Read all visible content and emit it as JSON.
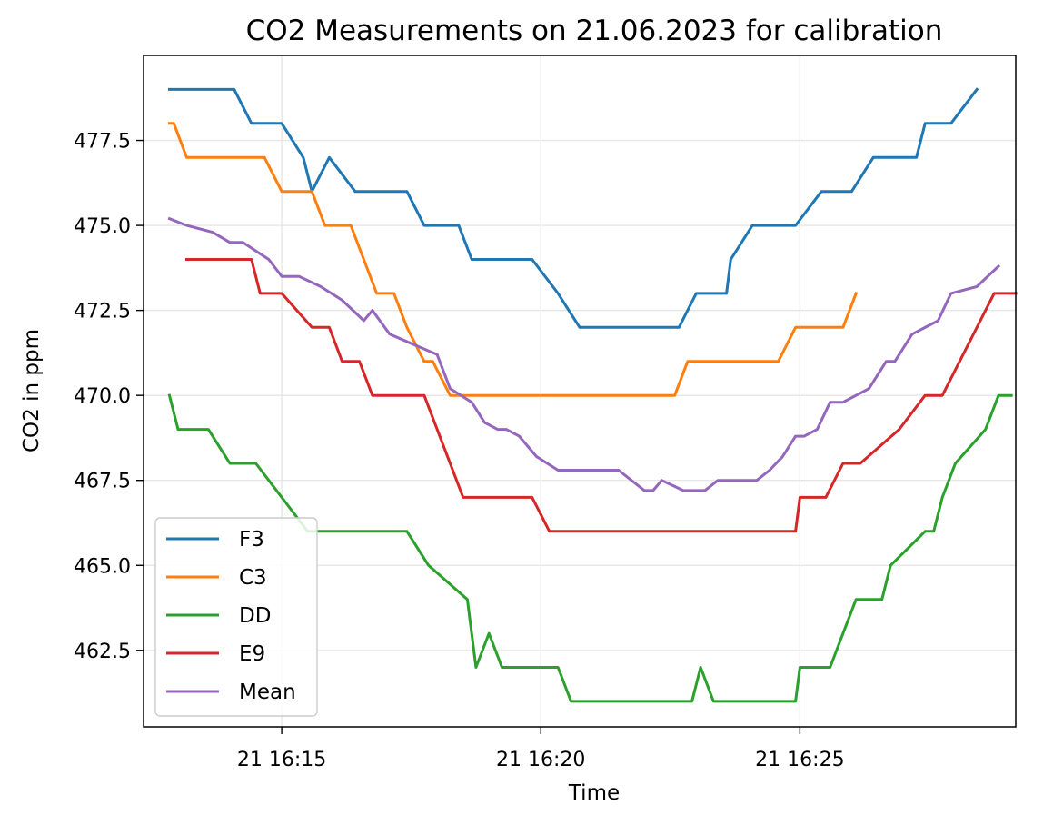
{
  "chart_data": {
    "type": "line",
    "title": "CO2 Measurements on 21.06.2023 for calibration",
    "xlabel": "Time",
    "ylabel": "CO2 in ppm",
    "x_unit": "time of day, 21.06.2023",
    "xlim": [
      "16:12:20",
      "16:29:10"
    ],
    "ylim": [
      460.25,
      480.0
    ],
    "grid": true,
    "legend_position": "lower left",
    "x_ticks": [
      {
        "value": "16:15",
        "label": "21 16:15"
      },
      {
        "value": "16:20",
        "label": "21 16:20"
      },
      {
        "value": "16:25",
        "label": "21 16:25"
      }
    ],
    "y_ticks": [
      {
        "value": 462.5,
        "label": "462.5"
      },
      {
        "value": 465.0,
        "label": "465.0"
      },
      {
        "value": 467.5,
        "label": "467.5"
      },
      {
        "value": 470.0,
        "label": "470.0"
      },
      {
        "value": 472.5,
        "label": "472.5"
      },
      {
        "value": 475.0,
        "label": "475.0"
      },
      {
        "value": 477.5,
        "label": "477.5"
      }
    ],
    "series": [
      {
        "name": "F3",
        "color": "#1f77b4",
        "points": [
          [
            "16:12:50",
            479
          ],
          [
            "16:14:05",
            479
          ],
          [
            "16:14:25",
            478
          ],
          [
            "16:15:00",
            478
          ],
          [
            "16:15:25",
            477
          ],
          [
            "16:15:35",
            476
          ],
          [
            "16:15:55",
            477
          ],
          [
            "16:16:25",
            476
          ],
          [
            "16:17:25",
            476
          ],
          [
            "16:17:45",
            475
          ],
          [
            "16:18:25",
            475
          ],
          [
            "16:18:40",
            474
          ],
          [
            "16:19:50",
            474
          ],
          [
            "16:20:20",
            473
          ],
          [
            "16:20:45",
            472
          ],
          [
            "16:22:40",
            472
          ],
          [
            "16:23:00",
            473
          ],
          [
            "16:23:35",
            473
          ],
          [
            "16:23:40",
            474
          ],
          [
            "16:24:05",
            475
          ],
          [
            "16:24:55",
            475
          ],
          [
            "16:25:25",
            476
          ],
          [
            "16:26:00",
            476
          ],
          [
            "16:26:25",
            477
          ],
          [
            "16:27:15",
            477
          ],
          [
            "16:27:25",
            478
          ],
          [
            "16:27:55",
            478
          ],
          [
            "16:28:25",
            479
          ]
        ]
      },
      {
        "name": "C3",
        "color": "#ff7f0e",
        "points": [
          [
            "16:12:50",
            478
          ],
          [
            "16:12:55",
            478
          ],
          [
            "16:13:10",
            477
          ],
          [
            "16:14:40",
            477
          ],
          [
            "16:15:00",
            476
          ],
          [
            "16:15:35",
            476
          ],
          [
            "16:15:50",
            475
          ],
          [
            "16:16:20",
            475
          ],
          [
            "16:16:50",
            473
          ],
          [
            "16:17:10",
            473
          ],
          [
            "16:17:25",
            472
          ],
          [
            "16:17:45",
            471
          ],
          [
            "16:17:55",
            471
          ],
          [
            "16:18:15",
            470
          ],
          [
            "16:22:35",
            470
          ],
          [
            "16:22:50",
            471
          ],
          [
            "16:24:35",
            471
          ],
          [
            "16:24:55",
            472
          ],
          [
            "16:25:50",
            472
          ],
          [
            "16:26:05",
            473
          ]
        ]
      },
      {
        "name": "DD",
        "color": "#2ca02c",
        "points": [
          [
            "16:12:50",
            470
          ],
          [
            "16:13:00",
            469
          ],
          [
            "16:13:35",
            469
          ],
          [
            "16:14:00",
            468
          ],
          [
            "16:14:30",
            468
          ],
          [
            "16:15:30",
            466
          ],
          [
            "16:17:25",
            466
          ],
          [
            "16:17:50",
            465
          ],
          [
            "16:18:35",
            464
          ],
          [
            "16:18:45",
            462
          ],
          [
            "16:19:00",
            463
          ],
          [
            "16:19:15",
            462
          ],
          [
            "16:20:20",
            462
          ],
          [
            "16:20:35",
            461
          ],
          [
            "16:22:55",
            461
          ],
          [
            "16:23:05",
            462
          ],
          [
            "16:23:20",
            461
          ],
          [
            "16:24:55",
            461
          ],
          [
            "16:25:00",
            462
          ],
          [
            "16:25:35",
            462
          ],
          [
            "16:26:05",
            464
          ],
          [
            "16:26:35",
            464
          ],
          [
            "16:26:45",
            465
          ],
          [
            "16:27:25",
            466
          ],
          [
            "16:27:35",
            466
          ],
          [
            "16:27:45",
            467
          ],
          [
            "16:28:00",
            468
          ],
          [
            "16:28:35",
            469
          ],
          [
            "16:28:50",
            470
          ],
          [
            "16:29:05",
            470
          ]
        ]
      },
      {
        "name": "E9",
        "color": "#d62728",
        "points": [
          [
            "16:13:10",
            474
          ],
          [
            "16:14:25",
            474
          ],
          [
            "16:14:35",
            473
          ],
          [
            "16:15:00",
            473
          ],
          [
            "16:15:35",
            472
          ],
          [
            "16:15:55",
            472
          ],
          [
            "16:16:10",
            471
          ],
          [
            "16:16:30",
            471
          ],
          [
            "16:16:45",
            470
          ],
          [
            "16:17:45",
            470
          ],
          [
            "16:18:00",
            469
          ],
          [
            "16:18:30",
            467
          ],
          [
            "16:19:50",
            467
          ],
          [
            "16:20:10",
            466
          ],
          [
            "16:24:55",
            466
          ],
          [
            "16:25:00",
            467
          ],
          [
            "16:25:30",
            467
          ],
          [
            "16:25:50",
            468
          ],
          [
            "16:26:10",
            468
          ],
          [
            "16:26:55",
            469
          ],
          [
            "16:27:25",
            470
          ],
          [
            "16:27:45",
            470
          ],
          [
            "16:28:45",
            473
          ],
          [
            "16:29:10",
            473
          ]
        ]
      },
      {
        "name": "Mean",
        "color": "#9467bd",
        "points": [
          [
            "16:12:50",
            475.2
          ],
          [
            "16:13:10",
            475
          ],
          [
            "16:13:40",
            474.8
          ],
          [
            "16:14:00",
            474.5
          ],
          [
            "16:14:15",
            474.5
          ],
          [
            "16:14:45",
            474
          ],
          [
            "16:15:00",
            473.5
          ],
          [
            "16:15:20",
            473.5
          ],
          [
            "16:15:45",
            473.2
          ],
          [
            "16:16:10",
            472.8
          ],
          [
            "16:16:35",
            472.2
          ],
          [
            "16:16:45",
            472.5
          ],
          [
            "16:17:05",
            471.8
          ],
          [
            "16:18:00",
            471.2
          ],
          [
            "16:18:15",
            470.2
          ],
          [
            "16:18:40",
            469.8
          ],
          [
            "16:18:55",
            469.2
          ],
          [
            "16:19:10",
            469
          ],
          [
            "16:19:20",
            469
          ],
          [
            "16:19:35",
            468.8
          ],
          [
            "16:19:55",
            468.2
          ],
          [
            "16:20:20",
            467.8
          ],
          [
            "16:21:30",
            467.8
          ],
          [
            "16:22:00",
            467.2
          ],
          [
            "16:22:10",
            467.2
          ],
          [
            "16:22:20",
            467.5
          ],
          [
            "16:22:45",
            467.2
          ],
          [
            "16:23:10",
            467.2
          ],
          [
            "16:23:25",
            467.5
          ],
          [
            "16:24:10",
            467.5
          ],
          [
            "16:24:25",
            467.8
          ],
          [
            "16:24:40",
            468.2
          ],
          [
            "16:24:55",
            468.8
          ],
          [
            "16:25:05",
            468.8
          ],
          [
            "16:25:20",
            469
          ],
          [
            "16:25:35",
            469.8
          ],
          [
            "16:25:50",
            469.8
          ],
          [
            "16:26:20",
            470.2
          ],
          [
            "16:26:40",
            471
          ],
          [
            "16:26:50",
            471
          ],
          [
            "16:27:10",
            471.8
          ],
          [
            "16:27:40",
            472.2
          ],
          [
            "16:27:55",
            473
          ],
          [
            "16:28:25",
            473.2
          ],
          [
            "16:28:50",
            473.8
          ]
        ]
      }
    ]
  }
}
